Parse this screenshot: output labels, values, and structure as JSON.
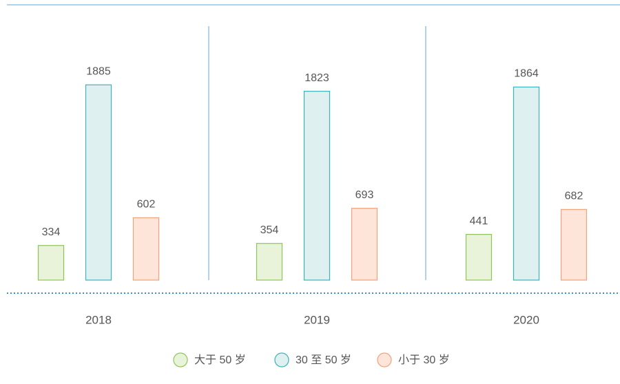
{
  "chart_data": {
    "type": "bar",
    "categories": [
      "2018",
      "2019",
      "2020"
    ],
    "series": [
      {
        "name": "大于 50 岁",
        "color": "#e9f3da",
        "stroke": "#8fc35a",
        "values": [
          334,
          354,
          441
        ]
      },
      {
        "name": "30 至 50 岁",
        "color": "#dff0f0",
        "stroke": "#3bb3b8",
        "values": [
          1885,
          1823,
          1864
        ]
      },
      {
        "name": "小于 30 岁",
        "color": "#fde5d9",
        "stroke": "#f0a27c",
        "values": [
          602,
          693,
          682
        ]
      }
    ],
    "ylim": [
      0,
      2000
    ]
  }
}
